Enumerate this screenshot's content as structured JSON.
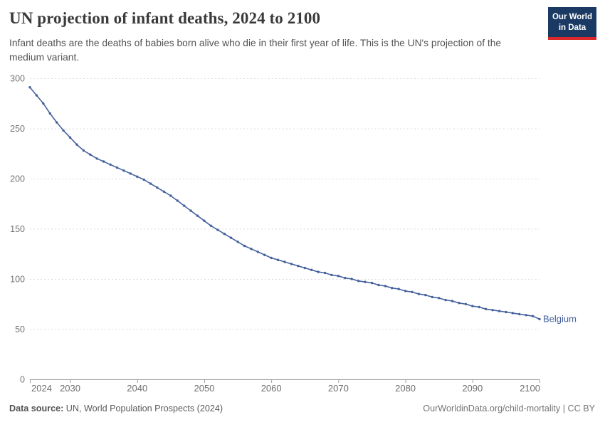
{
  "header": {
    "title": "UN projection of infant deaths, 2024 to 2100",
    "subtitle": "Infant deaths are the deaths of babies born alive who die in their first year of life. This is the UN's projection of the medium variant.",
    "logo": {
      "line1": "Our World",
      "line2": "in Data",
      "bg_color": "#1a3a63",
      "stripe_color": "#dc2828"
    }
  },
  "footer": {
    "source_label": "Data source:",
    "source_value": " UN, World Population Prospects (2024)",
    "rights": "OurWorldinData.org/child-mortality | CC BY"
  },
  "chart_data": {
    "type": "line",
    "title": "UN projection of infant deaths, 2024 to 2100",
    "xlabel": "",
    "ylabel": "",
    "ylim": [
      0,
      300
    ],
    "yticks": [
      0,
      50,
      100,
      150,
      200,
      250,
      300
    ],
    "xticks": [
      2024,
      2030,
      2040,
      2050,
      2060,
      2070,
      2080,
      2090,
      2100
    ],
    "grid": true,
    "grid_color": "#dcdcdc",
    "axis_color": "#9e9e9e",
    "legend_position": "end-of-line",
    "x": [
      2024,
      2025,
      2026,
      2027,
      2028,
      2029,
      2030,
      2031,
      2032,
      2033,
      2034,
      2035,
      2036,
      2037,
      2038,
      2039,
      2040,
      2041,
      2042,
      2043,
      2044,
      2045,
      2046,
      2047,
      2048,
      2049,
      2050,
      2051,
      2052,
      2053,
      2054,
      2055,
      2056,
      2057,
      2058,
      2059,
      2060,
      2061,
      2062,
      2063,
      2064,
      2065,
      2066,
      2067,
      2068,
      2069,
      2070,
      2071,
      2072,
      2073,
      2074,
      2075,
      2076,
      2077,
      2078,
      2079,
      2080,
      2081,
      2082,
      2083,
      2084,
      2085,
      2086,
      2087,
      2088,
      2089,
      2090,
      2091,
      2092,
      2093,
      2094,
      2095,
      2096,
      2097,
      2098,
      2099,
      2100
    ],
    "series": [
      {
        "name": "Belgium",
        "color": "#45619d",
        "values": [
          291,
          283,
          275,
          265,
          256,
          248,
          241,
          234,
          228,
          224,
          220,
          217,
          214,
          211,
          208,
          205,
          202,
          199,
          195,
          191,
          187,
          183,
          178,
          173,
          168,
          163,
          158,
          153,
          149,
          145,
          141,
          137,
          133,
          130,
          127,
          124,
          121,
          119,
          117,
          115,
          113,
          111,
          109,
          107,
          106,
          104,
          103,
          101,
          100,
          98,
          97,
          96,
          94,
          93,
          91,
          90,
          88,
          87,
          85,
          84,
          82,
          81,
          79,
          78,
          76,
          75,
          73,
          72,
          70,
          69,
          68,
          67,
          66,
          65,
          64,
          63,
          60
        ]
      }
    ]
  }
}
